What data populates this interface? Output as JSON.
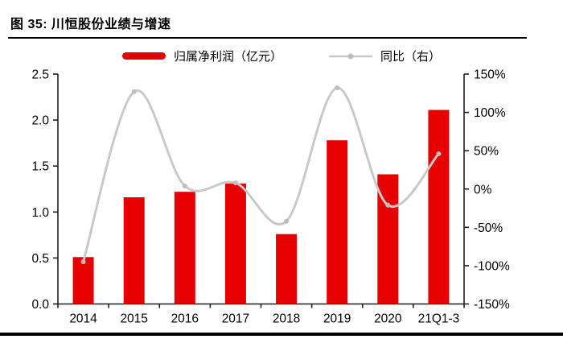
{
  "figure": {
    "title": "图 35: 川恒股份业绩与增速"
  },
  "legend": [
    {
      "label": "归属净利润（亿元）",
      "type": "bar",
      "color": "#e60000"
    },
    {
      "label": "同比（右）",
      "type": "line",
      "color": "#c9c9c9"
    }
  ],
  "colors": {
    "bar_red": "#e60000",
    "line_gray": "#c9c9c9",
    "marker_gray": "#bdbdbd",
    "axis_black": "#1f1f1f"
  },
  "chart_data": {
    "type": "bar",
    "title": "川恒股份业绩与增速",
    "categories": [
      "2014",
      "2015",
      "2016",
      "2017",
      "2018",
      "2019",
      "2020",
      "21Q1-3"
    ],
    "series": [
      {
        "name": "归属净利润（亿元）",
        "type": "bar",
        "axis": "left",
        "color": "#e60000",
        "values": [
          0.51,
          1.16,
          1.22,
          1.31,
          0.76,
          1.78,
          1.41,
          2.11
        ]
      },
      {
        "name": "同比（右）",
        "type": "line",
        "axis": "right",
        "color": "#c9c9c9",
        "values": [
          -95,
          127,
          4,
          8,
          -42,
          132,
          -21,
          46
        ]
      }
    ],
    "left_axis": {
      "min": 0,
      "max": 2.5,
      "tick_labels": [
        "0.0",
        "0.5",
        "1.0",
        "1.5",
        "2.0",
        "2.5"
      ]
    },
    "right_axis": {
      "min": -150,
      "max": 150,
      "unit": "%",
      "tick_labels": [
        "-150%",
        "-100%",
        "-50%",
        "0%",
        "50%",
        "100%",
        "150%"
      ]
    },
    "grid": false,
    "legend_position": "top",
    "line_smooth": true
  }
}
